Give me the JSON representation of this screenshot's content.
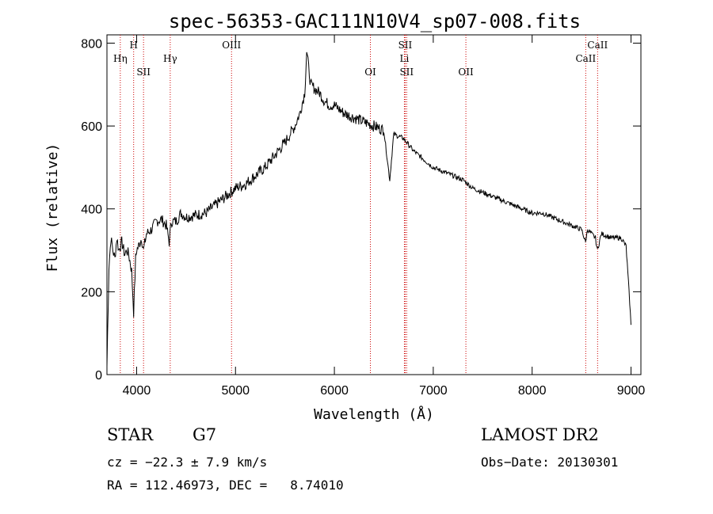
{
  "chart_data": {
    "type": "line",
    "title": "spec-56353-GAC111N10V4_sp07-008.fits",
    "xlabel": "Wavelength (Å)",
    "ylabel": "Flux (relative)",
    "xlim": [
      3700,
      9100
    ],
    "ylim": [
      0,
      820
    ],
    "x_ticks": [
      4000,
      5000,
      6000,
      7000,
      8000,
      9000
    ],
    "y_ticks": [
      0,
      200,
      400,
      600,
      800
    ],
    "grid": false,
    "line_color": "#000000",
    "marker_color": "#cc0000",
    "series": [
      {
        "x": [
          3700,
          3720,
          3740,
          3760,
          3780,
          3800,
          3820,
          3850,
          3880,
          3900,
          3920,
          3950,
          3970,
          3990,
          4000,
          4020,
          4050,
          4070,
          4100,
          4150,
          4200,
          4250,
          4300,
          4330,
          4350,
          4400,
          4450,
          4500,
          4600,
          4700,
          4800,
          4900,
          5000,
          5100,
          5200,
          5300,
          5400,
          5500,
          5550,
          5600,
          5650,
          5700,
          5720,
          5740,
          5760,
          5800,
          5850,
          5900,
          5950,
          6000,
          6100,
          6200,
          6300,
          6400,
          6500,
          6560,
          6600,
          6700,
          6800,
          6900,
          7000,
          7100,
          7200,
          7300,
          7400,
          7500,
          7600,
          7700,
          7800,
          7900,
          8000,
          8100,
          8200,
          8300,
          8400,
          8500,
          8540,
          8560,
          8600,
          8640,
          8660,
          8700,
          8800,
          8900,
          8950,
          8980,
          9000
        ],
        "y": [
          20,
          260,
          330,
          300,
          280,
          330,
          300,
          320,
          290,
          300,
          290,
          250,
          150,
          280,
          300,
          310,
          330,
          300,
          340,
          350,
          370,
          375,
          360,
          320,
          370,
          370,
          390,
          380,
          385,
          390,
          410,
          430,
          450,
          460,
          480,
          500,
          530,
          560,
          580,
          600,
          630,
          680,
          780,
          740,
          700,
          690,
          680,
          660,
          650,
          650,
          630,
          620,
          610,
          600,
          590,
          470,
          580,
          570,
          540,
          520,
          500,
          490,
          480,
          470,
          450,
          440,
          430,
          420,
          410,
          400,
          390,
          390,
          380,
          370,
          360,
          350,
          320,
          350,
          340,
          330,
          300,
          340,
          330,
          330,
          310,
          200,
          120
        ]
      }
    ],
    "line_labels": [
      {
        "label": "Hη",
        "x": 3835,
        "row": 1
      },
      {
        "label": "H",
        "x": 3970,
        "row": 0
      },
      {
        "label": "SII",
        "x": 4070,
        "row": 2
      },
      {
        "label": "Hγ",
        "x": 4340,
        "row": 1
      },
      {
        "label": "OIII",
        "x": 4960,
        "row": 0
      },
      {
        "label": "OI",
        "x": 6364,
        "row": 2
      },
      {
        "label": "SII",
        "x": 6716,
        "row": 0
      },
      {
        "label": "Li",
        "x": 6708,
        "row": 1
      },
      {
        "label": "SII",
        "x": 6731,
        "row": 2
      },
      {
        "label": "OII",
        "x": 7330,
        "row": 2
      },
      {
        "label": "CaII",
        "x": 8542,
        "row": 1
      },
      {
        "label": "CaII",
        "x": 8662,
        "row": 0
      }
    ]
  },
  "info": {
    "class_label": "STAR",
    "subclass_label": "G7",
    "survey_label": "LAMOST DR2",
    "redshift_text": "cz = −22.3 ± 7.9 km/s",
    "obs_date_text": "Obs−Date: 20130301",
    "coords_text": "RA = 112.46973, DEC =   8.74010"
  }
}
